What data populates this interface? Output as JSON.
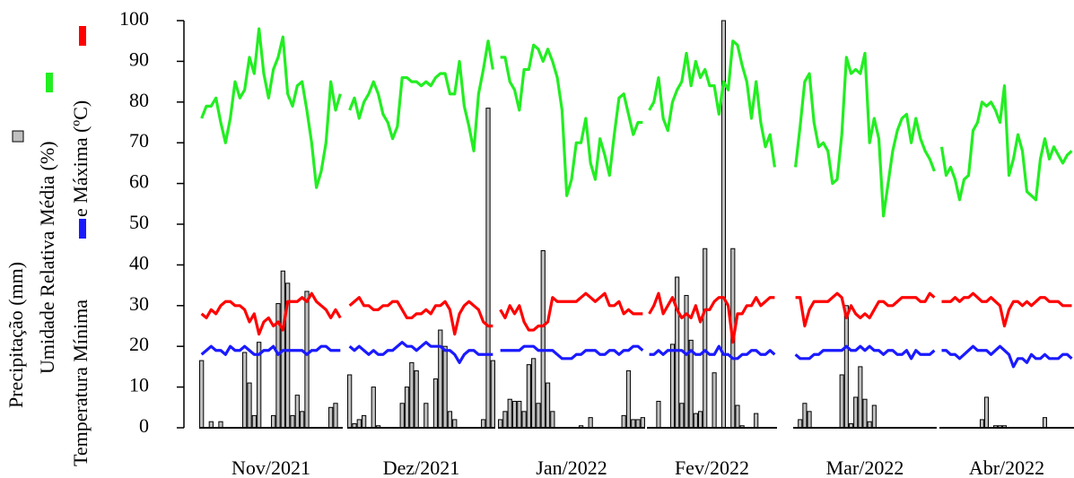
{
  "chart_data": {
    "type": "bar-line",
    "categories": [
      "Nov/2021",
      "Dez/2021",
      "Jan/2022",
      "Fev/2022",
      "Mar/2022",
      "Abr/2022"
    ],
    "ylim": [
      0,
      100
    ],
    "yticks": [
      0,
      10,
      20,
      30,
      40,
      50,
      60,
      70,
      80,
      90,
      100
    ],
    "series": [
      {
        "name": "Precipitação (mm)",
        "color": "#c0c0c0",
        "kind": "bar",
        "values": [
          [
            16.5,
            0,
            1.5,
            0,
            1.5,
            0,
            0,
            0,
            0,
            18.5,
            11,
            3,
            21,
            0,
            0,
            3,
            30.5,
            38.5,
            35.5,
            3,
            8,
            4,
            33.5,
            0,
            0,
            0,
            0,
            5,
            6,
            0
          ],
          [
            13,
            1,
            2,
            3,
            0,
            10,
            0.5,
            0,
            0,
            0,
            0,
            6,
            10,
            16,
            14,
            0,
            6,
            0,
            12,
            24,
            20,
            4,
            2,
            0,
            0,
            0,
            0,
            0,
            2,
            78.5,
            16.5
          ],
          [
            2,
            4,
            7,
            6.5,
            6.5,
            4,
            15.5,
            17,
            6,
            43.5,
            11,
            4,
            0,
            0,
            0,
            0,
            0,
            0.5,
            0,
            2.5,
            0,
            0,
            0,
            0,
            0,
            0,
            3,
            14,
            2,
            2,
            2.5
          ],
          [
            0,
            0,
            6.5,
            0,
            0,
            20.5,
            37,
            6,
            32.5,
            21.5,
            3.5,
            4,
            44,
            0,
            13.5,
            0,
            100,
            0,
            44,
            5.5,
            0.5,
            0,
            0,
            3.5,
            0,
            0,
            0,
            0
          ],
          [
            0,
            2,
            6,
            4,
            0,
            0,
            0,
            0,
            0,
            0,
            13,
            30,
            1,
            7.5,
            15,
            7,
            1.5,
            5.5,
            0,
            0,
            0,
            0,
            0,
            0,
            0,
            0,
            0,
            0,
            0,
            0,
            0
          ],
          [
            0,
            0,
            0,
            0,
            0,
            0,
            0,
            0,
            0,
            2,
            7.5,
            0,
            0.5,
            0.5,
            0.5,
            0,
            0,
            0,
            0,
            0,
            0,
            0,
            0,
            2.5,
            0,
            0,
            0,
            0,
            0,
            0
          ]
        ]
      },
      {
        "name": "Umidade Relativa Média (%)",
        "color": "#22ee22",
        "kind": "line",
        "values": [
          [
            76,
            79,
            79,
            81,
            75,
            70,
            76,
            85,
            81,
            83,
            91,
            87,
            98,
            87,
            81,
            88,
            91,
            96,
            82,
            79,
            84,
            85,
            78,
            70,
            59,
            63,
            70,
            85,
            78,
            82
          ],
          [
            78,
            81,
            76,
            80,
            82,
            85,
            82,
            77,
            75,
            71,
            74,
            86,
            86,
            85,
            85,
            84,
            85,
            84,
            86,
            87,
            87,
            82,
            82,
            90,
            79,
            74,
            68,
            82,
            88,
            95,
            88
          ],
          [
            91,
            91,
            85,
            83,
            78,
            88,
            88,
            94,
            93,
            90,
            93,
            90,
            86,
            78,
            57,
            61,
            70,
            70,
            76,
            65,
            61,
            71,
            67,
            62,
            72,
            81,
            82,
            77,
            72,
            75,
            75
          ],
          [
            78,
            80,
            86,
            76,
            73,
            80,
            83,
            85,
            92,
            84,
            90,
            86,
            88,
            84,
            84,
            77,
            85,
            83,
            95,
            94,
            89,
            85,
            76,
            85,
            75,
            69,
            72,
            64
          ],
          [
            64,
            74,
            85,
            87,
            75,
            69,
            70,
            68,
            60,
            61,
            72,
            91,
            87,
            88,
            87,
            92,
            70,
            76,
            71,
            52,
            60,
            68,
            73,
            76,
            77,
            70,
            76,
            71,
            68,
            66,
            63
          ],
          [
            69,
            62,
            64,
            61,
            56,
            61,
            62,
            73,
            75,
            80,
            79,
            80,
            78,
            75,
            84,
            62,
            66,
            72,
            68,
            58,
            57,
            56,
            66,
            71,
            66,
            69,
            67,
            65,
            67,
            68
          ]
        ]
      },
      {
        "name": "Temperatura Mínima",
        "color": "#1a1aff",
        "kind": "line",
        "values": [
          [
            18,
            19,
            20,
            19,
            19,
            18,
            20,
            19,
            19,
            20,
            19,
            18,
            18,
            19,
            19,
            20,
            18,
            19,
            19,
            19,
            19,
            19,
            18,
            19,
            19,
            20,
            20,
            19,
            19,
            19
          ],
          [
            20,
            19,
            20,
            19,
            18,
            19,
            18,
            18,
            19,
            19,
            20,
            21,
            20,
            20,
            19,
            20,
            21,
            20,
            20,
            20,
            19,
            19,
            18,
            16,
            18,
            19,
            19,
            18,
            18,
            18,
            18
          ],
          [
            19,
            19,
            19,
            19,
            19,
            20,
            20,
            20,
            19,
            19,
            19,
            19,
            18,
            17,
            17,
            17,
            18,
            18,
            19,
            19,
            19,
            18,
            18,
            19,
            19,
            18,
            19,
            19,
            20,
            20,
            19
          ],
          [
            18,
            18,
            19,
            18,
            19,
            19,
            19,
            19,
            18,
            19,
            18,
            18,
            19,
            18,
            18,
            20,
            18,
            18,
            17,
            17,
            18,
            18,
            19,
            19,
            18,
            18,
            19,
            18
          ],
          [
            18,
            17,
            17,
            17,
            18,
            18,
            19,
            19,
            19,
            19,
            19,
            20,
            19,
            19,
            20,
            19,
            20,
            19,
            19,
            18,
            19,
            19,
            18,
            18,
            19,
            17,
            19,
            18,
            18,
            18,
            19
          ],
          [
            19,
            19,
            18,
            18,
            17,
            18,
            19,
            20,
            19,
            19,
            19,
            18,
            19,
            20,
            19,
            18,
            15,
            17,
            17,
            16,
            18,
            17,
            17,
            18,
            17,
            17,
            17,
            18,
            18,
            17
          ]
        ]
      },
      {
        "name": "e Máxima (ºC)",
        "color": "#ff0000",
        "kind": "line",
        "values": [
          [
            28,
            27,
            29,
            28,
            30,
            31,
            31,
            30,
            30,
            29,
            26,
            28,
            23,
            26,
            27,
            25,
            26,
            24,
            31,
            31,
            31,
            32,
            31,
            33,
            31,
            30,
            29,
            27,
            29,
            27
          ],
          [
            30,
            31,
            32,
            30,
            30,
            29,
            29,
            30,
            30,
            31,
            31,
            29,
            27,
            27,
            28,
            28,
            29,
            28,
            30,
            30,
            31,
            29,
            23,
            28,
            30,
            31,
            30,
            29,
            26,
            25,
            25
          ],
          [
            29,
            27,
            30,
            28,
            30,
            26,
            24,
            24,
            25,
            25,
            26,
            32,
            31,
            31,
            31,
            31,
            31,
            32,
            33,
            32,
            31,
            32,
            33,
            30,
            30,
            31,
            28,
            29,
            28,
            28,
            28
          ],
          [
            28,
            30,
            33,
            28,
            30,
            32,
            29,
            27,
            28,
            27,
            30,
            26,
            29,
            29,
            31,
            32,
            32,
            30,
            21,
            28,
            28,
            30,
            30,
            32,
            30,
            31,
            32,
            32
          ],
          [
            32,
            32,
            25,
            29,
            31,
            31,
            31,
            31,
            32,
            33,
            32,
            27,
            30,
            28,
            27,
            28,
            27,
            29,
            31,
            31,
            30,
            30,
            31,
            32,
            32,
            32,
            32,
            31,
            31,
            33,
            32
          ],
          [
            31,
            31,
            31,
            32,
            31,
            32,
            32,
            33,
            32,
            31,
            31,
            32,
            31,
            30,
            25,
            29,
            31,
            31,
            30,
            31,
            30,
            31,
            32,
            32,
            31,
            31,
            31,
            30,
            30,
            30
          ]
        ]
      }
    ]
  }
}
